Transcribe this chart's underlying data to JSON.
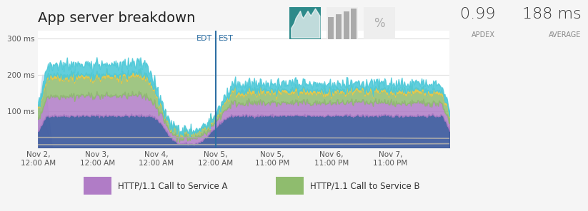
{
  "title": "App server breakdown",
  "apdex": "0.99",
  "average": "188 ms",
  "ylabel_ticks": [
    "100 ms",
    "200 ms",
    "300 ms"
  ],
  "ylabel_vals": [
    100,
    200,
    300
  ],
  "ylim": [
    0,
    320
  ],
  "xtick_labels": [
    "Nov 2,\n12:00 AM",
    "Nov 3,\n12:00 AM",
    "Nov 4,\n12:00 AM",
    "Nov 5,\n12:00 AM",
    "Nov 5,\n11:00 PM",
    "Nov 6,\n11:00 PM",
    "Nov 7,\n11:00 PM"
  ],
  "edt_label": "EDT",
  "est_label": "EST",
  "legend": [
    {
      "label": "HTTP/1.1 Call to Service A",
      "color": "#b07cc6"
    },
    {
      "label": "HTTP/1.1 Call to Service B",
      "color": "#8fbc6e"
    }
  ],
  "colors": {
    "blue_base": "#3d5a9e",
    "purple": "#b07cc6",
    "green": "#8fbc6e",
    "yellow": "#e8c84a",
    "cyan": "#4bc8d8",
    "light_blue_ghost": "#b8cfe8",
    "light_purple_ghost": "#d9c4e8"
  },
  "bg_color": "#f8f8f8",
  "chart_bg": "#ffffff",
  "grid_color": "#e0e0e0"
}
